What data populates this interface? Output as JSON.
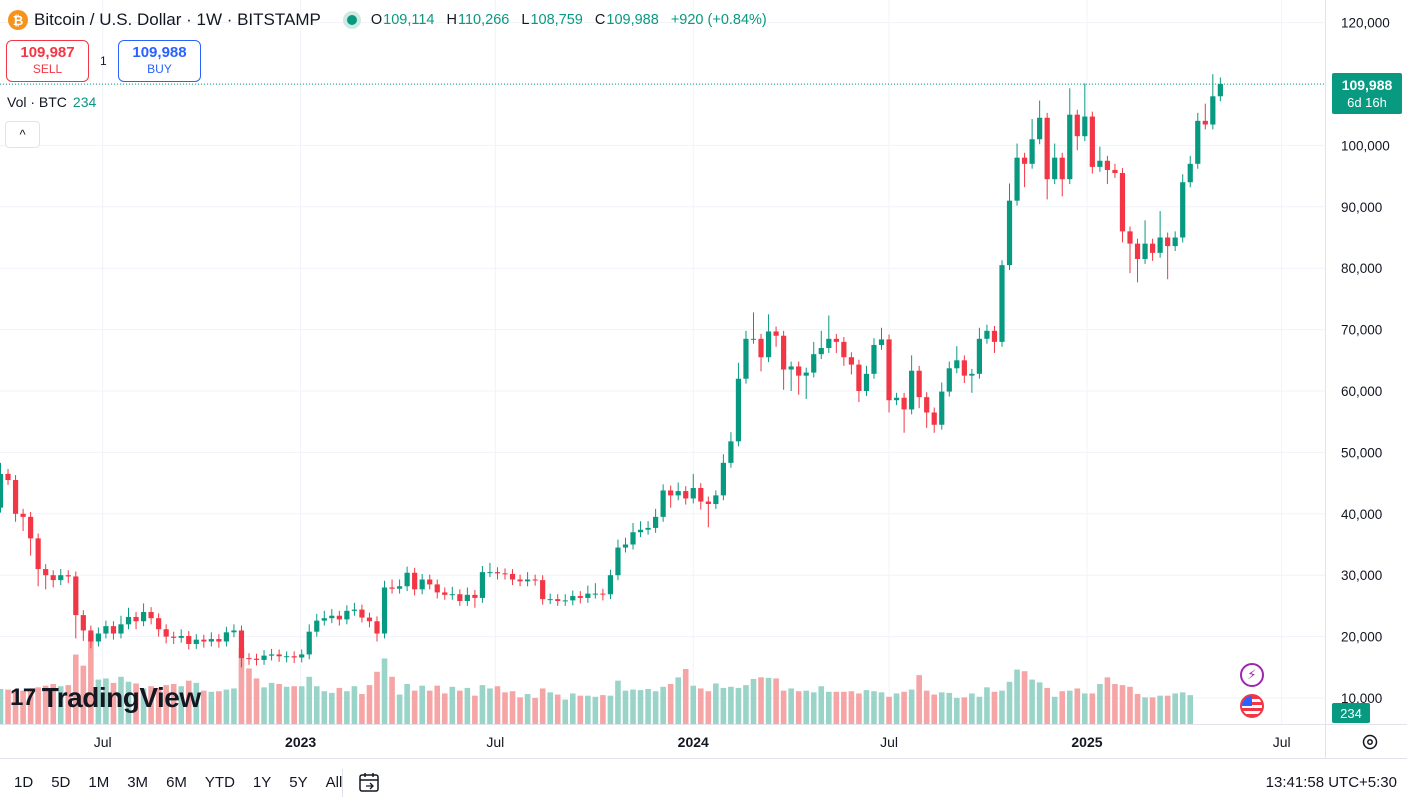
{
  "header": {
    "title": "Bitcoin / U.S. Dollar · 1W · BITSTAMP",
    "logo_glyph": "₿",
    "open_label": "O",
    "open": "109,114",
    "high_label": "H",
    "high": "110,266",
    "low_label": "L",
    "low": "108,759",
    "close_label": "C",
    "close": "109,988",
    "change": "+920 (+0.84%)"
  },
  "trade": {
    "sell_price": "109,987",
    "sell_label": "SELL",
    "spread": "1",
    "buy_price": "109,988",
    "buy_label": "BUY"
  },
  "volume_legend": {
    "label": "Vol · BTC",
    "value": "234"
  },
  "collapse_icon": "chevron-up-icon",
  "collapse_glyph": "^",
  "brand": {
    "name": "TradingView",
    "mark": "17"
  },
  "price_tag": {
    "price": "109,988",
    "countdown": "6d 16h"
  },
  "volume_tag": "234",
  "bottom": {
    "ranges": [
      "1D",
      "5D",
      "1M",
      "3M",
      "6M",
      "YTD",
      "1Y",
      "5Y",
      "All"
    ],
    "clock": "13:41:58 UTC+5:30"
  },
  "colors": {
    "up": "#089981",
    "down": "#f23645",
    "up_volume": "#9ad4c9",
    "down_volume": "#f5a5a5",
    "grid": "#f0f3fa"
  },
  "chart_data": {
    "type": "candlestick",
    "interval": "1W",
    "y_axis": {
      "range": [
        0,
        126000
      ],
      "ticks": [
        "10,000",
        "20,000",
        "30,000",
        "40,000",
        "50,000",
        "60,000",
        "70,000",
        "80,000",
        "90,000",
        "100,000",
        "110,000",
        "120,000"
      ],
      "tick_values": [
        10000,
        20000,
        30000,
        40000,
        50000,
        60000,
        70000,
        80000,
        90000,
        100000,
        110000,
        120000
      ]
    },
    "x_axis": {
      "labels": [
        "Jul",
        "2023",
        "Jul",
        "2024",
        "Jul",
        "2025",
        "Jul"
      ],
      "bold": [
        false,
        true,
        false,
        true,
        false,
        true,
        false
      ],
      "label_dates": [
        "2022-07-01",
        "2023-01-01",
        "2023-07-01",
        "2024-01-01",
        "2024-07-01",
        "2025-01-01",
        "2025-07-01"
      ]
    },
    "first_candle_week": "2022-03-28",
    "grid": true,
    "last_price_line": 109988,
    "weekly_close_path": [
      [
        41000,
        46500,
        47500
      ],
      [
        46500,
        45500,
        46000
      ],
      [
        45500,
        40000,
        39500
      ],
      [
        40000,
        39500,
        38000
      ],
      [
        39500,
        36000,
        34000
      ],
      [
        36000,
        31000,
        29000
      ],
      [
        31000,
        30000,
        28500
      ],
      [
        30000,
        29200,
        28800
      ],
      [
        29200,
        30000,
        30200
      ],
      [
        30000,
        29800,
        29500
      ],
      [
        29800,
        23500,
        20500
      ],
      [
        23500,
        21000,
        20100
      ],
      [
        21000,
        19200,
        18900
      ],
      [
        19200,
        20500,
        20700
      ],
      [
        20500,
        21700,
        21800
      ],
      [
        21700,
        20500,
        20300
      ],
      [
        20500,
        22000,
        22600
      ],
      [
        22000,
        23200,
        23900
      ],
      [
        23200,
        22500,
        22000
      ],
      [
        22500,
        24000,
        24600
      ],
      [
        24000,
        23000,
        22800
      ],
      [
        23000,
        21200,
        20800
      ],
      [
        21200,
        20000,
        19700
      ],
      [
        20000,
        19800,
        19600
      ],
      [
        19800,
        20100,
        20400
      ],
      [
        20100,
        18800,
        18700
      ],
      [
        18800,
        19500,
        19600
      ],
      [
        19500,
        19200,
        19000
      ],
      [
        19200,
        19600,
        19900
      ],
      [
        19600,
        19200,
        19000
      ],
      [
        19200,
        20700,
        20800
      ],
      [
        20700,
        21000,
        21200
      ],
      [
        21000,
        16500,
        15800
      ],
      [
        16500,
        16400,
        16200
      ],
      [
        16400,
        16200,
        16100
      ],
      [
        16200,
        16900,
        17000
      ],
      [
        16900,
        17100,
        17200
      ],
      [
        17100,
        16800,
        16700
      ],
      [
        16800,
        16800,
        16600
      ],
      [
        16800,
        16600,
        16500
      ],
      [
        16600,
        17100,
        17100
      ],
      [
        17100,
        20800,
        21200
      ],
      [
        20800,
        22600,
        22900
      ],
      [
        22600,
        23000,
        23400
      ],
      [
        23000,
        23400,
        23700
      ],
      [
        23400,
        22800,
        22600
      ],
      [
        22800,
        24200,
        24300
      ],
      [
        24200,
        24400,
        24700
      ],
      [
        24400,
        23100,
        23100
      ],
      [
        23100,
        22500,
        22300
      ],
      [
        22500,
        20500,
        20000
      ],
      [
        20500,
        28000,
        28300
      ],
      [
        28000,
        27800,
        28500
      ],
      [
        27800,
        28200,
        28500
      ],
      [
        28200,
        30400,
        30600
      ],
      [
        30400,
        27700,
        27500
      ],
      [
        27700,
        29300,
        29400
      ],
      [
        29300,
        28500,
        28700
      ],
      [
        28500,
        27200,
        27000
      ],
      [
        27200,
        26800,
        27000
      ],
      [
        26800,
        26900,
        27300
      ],
      [
        26900,
        25800,
        25800
      ],
      [
        25800,
        26800,
        27200
      ],
      [
        26800,
        26300,
        25500
      ],
      [
        26300,
        30500,
        30700
      ],
      [
        30500,
        30500,
        31200
      ],
      [
        30500,
        30300,
        30100
      ],
      [
        30300,
        30200,
        30100
      ],
      [
        30200,
        29300,
        29200
      ],
      [
        29300,
        29000,
        29100
      ],
      [
        29000,
        29300,
        29700
      ],
      [
        29300,
        29200,
        29100
      ],
      [
        29200,
        26100,
        26000
      ],
      [
        26100,
        26100,
        26200
      ],
      [
        26100,
        25800,
        25800
      ],
      [
        25800,
        25900,
        26100
      ],
      [
        25900,
        26600,
        26700
      ],
      [
        26600,
        26300,
        26200
      ],
      [
        26300,
        27000,
        27500
      ],
      [
        27000,
        27000,
        27900
      ],
      [
        27000,
        26900,
        26700
      ],
      [
        26900,
        30000,
        30100
      ],
      [
        30000,
        34500,
        35000
      ],
      [
        34500,
        35000,
        35300
      ],
      [
        35000,
        37000,
        37700
      ],
      [
        37000,
        37400,
        38000
      ],
      [
        37400,
        37700,
        38000
      ],
      [
        37700,
        39500,
        40000
      ],
      [
        39500,
        43800,
        44000
      ],
      [
        43800,
        43000,
        41800
      ],
      [
        43000,
        43700,
        44300
      ],
      [
        43700,
        42500,
        42300
      ],
      [
        42500,
        44200,
        45700
      ],
      [
        44200,
        42000,
        41500
      ],
      [
        42000,
        41600,
        38600
      ],
      [
        41600,
        43000,
        42800
      ],
      [
        43000,
        48300,
        48900
      ],
      [
        48300,
        51800,
        52500
      ],
      [
        51800,
        62000,
        63800
      ],
      [
        62000,
        68500,
        69000
      ],
      [
        68500,
        68500,
        72000
      ],
      [
        68500,
        65500,
        64000
      ],
      [
        65500,
        69700,
        71700
      ],
      [
        69700,
        69000,
        68000
      ],
      [
        69000,
        63500,
        61000
      ],
      [
        63500,
        64000,
        60800
      ],
      [
        64000,
        62500,
        60200
      ],
      [
        62500,
        63000,
        59500
      ],
      [
        63000,
        66000,
        67200
      ],
      [
        66000,
        67000,
        69000
      ],
      [
        67000,
        68500,
        71500
      ],
      [
        68500,
        68000,
        67000
      ],
      [
        68000,
        65500,
        64900
      ],
      [
        65500,
        64300,
        63500
      ],
      [
        64300,
        60000,
        59000
      ],
      [
        60000,
        62800,
        63300
      ],
      [
        62800,
        67500,
        67800
      ],
      [
        67500,
        68400,
        69500
      ],
      [
        68400,
        58500,
        57300
      ],
      [
        58500,
        58900,
        58800
      ],
      [
        58900,
        57000,
        54000
      ],
      [
        57000,
        63300,
        65000
      ],
      [
        63300,
        59000,
        58000
      ],
      [
        59000,
        56500,
        54800
      ],
      [
        56500,
        54500,
        54000
      ],
      [
        54500,
        59900,
        60600
      ],
      [
        59900,
        63700,
        64000
      ],
      [
        63700,
        65000,
        66500
      ],
      [
        65000,
        62500,
        62100
      ],
      [
        62500,
        62800,
        60500
      ],
      [
        62800,
        68500,
        69500
      ],
      [
        68500,
        69800,
        70000
      ],
      [
        69800,
        68000,
        67000
      ],
      [
        68000,
        80500,
        80000
      ],
      [
        80500,
        91000,
        93000
      ],
      [
        91000,
        98000,
        99500
      ],
      [
        98000,
        97000,
        94000
      ],
      [
        97000,
        101000,
        103500
      ],
      [
        101000,
        104500,
        106500
      ],
      [
        104500,
        94500,
        92000
      ],
      [
        94500,
        98000,
        99500
      ],
      [
        98000,
        94500,
        92500
      ],
      [
        94500,
        105000,
        108500
      ],
      [
        105000,
        101500,
        100000
      ],
      [
        101500,
        104700,
        109300
      ],
      [
        104700,
        96500,
        96200
      ],
      [
        96500,
        97500,
        99000
      ],
      [
        97500,
        96000,
        94500
      ],
      [
        96000,
        95500,
        96200
      ],
      [
        95500,
        86000,
        85000
      ],
      [
        86000,
        84000,
        80000
      ],
      [
        84000,
        81500,
        78500
      ],
      [
        81500,
        84000,
        87000
      ],
      [
        84000,
        82500,
        82000
      ],
      [
        82500,
        85000,
        88500
      ],
      [
        85000,
        83600,
        79000
      ],
      [
        83600,
        85000,
        85200
      ],
      [
        85000,
        94000,
        94500
      ],
      [
        94000,
        97000,
        97500
      ],
      [
        97000,
        104000,
        104500
      ],
      [
        104000,
        103400,
        106000
      ],
      [
        103400,
        108000,
        110800
      ],
      [
        108000,
        109988,
        110266
      ]
    ],
    "volume": [
      6300,
      6200,
      6100,
      6000,
      6400,
      6600,
      6900,
      7200,
      6800,
      7000,
      12500,
      10500,
      16200,
      8000,
      8200,
      7400,
      8500,
      7600,
      7300,
      6400,
      6800,
      6500,
      7000,
      7200,
      6800,
      7800,
      7400,
      6000,
      5800,
      5900,
      6200,
      6400,
      13600,
      10000,
      8200,
      6600,
      7400,
      7200,
      6700,
      6800,
      6800,
      8500,
      6800,
      5900,
      5600,
      6500,
      5900,
      6800,
      5400,
      7000,
      9400,
      11800,
      8500,
      5300,
      7200,
      6000,
      6900,
      6000,
      6900,
      5500,
      6700,
      6000,
      6500,
      5100,
      7000,
      6400,
      6800,
      5700,
      5900,
      4800,
      5400,
      4700,
      6400,
      5700,
      5300,
      4400,
      5500,
      5100,
      5100,
      4900,
      5200,
      5100,
      7800,
      6000,
      6200,
      6100,
      6300,
      5900,
      6700,
      7200,
      8400,
      9900,
      6900,
      6400,
      5900,
      7300,
      6500,
      6700,
      6500,
      7000,
      8100,
      8400,
      8300,
      8200,
      6000,
      6400,
      5900,
      6000,
      5700,
      6800,
      5800,
      5800,
      5800,
      5900,
      5500,
      6100,
      5900,
      5700,
      4900,
      5500,
      5800,
      6200,
      8800,
      6000,
      5300,
      5700,
      5600,
      4700,
      4800,
      5500,
      4900,
      6600,
      5800,
      6000,
      7600,
      9800,
      9500,
      8000,
      7500,
      6500,
      4900,
      5900,
      6000,
      6400,
      5500,
      5500,
      7200,
      8400,
      7200,
      7000,
      6700,
      5400,
      4800,
      4800,
      5100,
      5100,
      5500,
      5700,
      5200
    ],
    "volume_scale": {
      "unit": "arbitrary",
      "max_display": 20000
    }
  }
}
